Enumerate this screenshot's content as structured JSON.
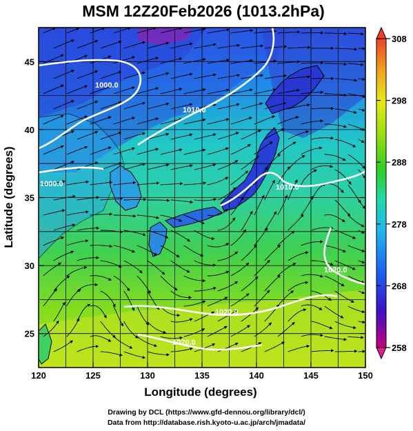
{
  "title": "MSM 12Z20Feb2026 (1013.2hPa)",
  "x_axis": {
    "label": "Longitude (degrees)",
    "ticks": [
      "120",
      "125",
      "130",
      "135",
      "140",
      "145",
      "150"
    ]
  },
  "y_axis": {
    "label": "Latitude  (degrees)",
    "ticks": [
      "25",
      "30",
      "35",
      "40",
      "45"
    ]
  },
  "colorbar": {
    "ticks": [
      "308",
      "298",
      "288",
      "278",
      "268",
      "258"
    ],
    "colors": [
      "#c80078",
      "#3a10c8",
      "#1a60f0",
      "#20b8f0",
      "#20d8a8",
      "#30d020",
      "#a0e010",
      "#e8e818",
      "#f0a020",
      "#f04028"
    ]
  },
  "isobar_labels": [
    "1000.0",
    "1000.0",
    "1010.0",
    "1010.0",
    "1020.0",
    "1020.0",
    "1020.0"
  ],
  "map": {
    "lon_range": [
      120,
      150
    ],
    "lat_range": [
      22.5,
      47.5
    ],
    "grid": true,
    "features": [
      "temperature-shading",
      "streamlines",
      "isobars",
      "coastlines"
    ]
  },
  "credits": {
    "line1": "Drawing by DCL (https://www.gfd-dennou.org/library/dcl/)",
    "line2": "Data from http://database.rish.kyoto-u.ac.jp/arch/jmadata/"
  }
}
